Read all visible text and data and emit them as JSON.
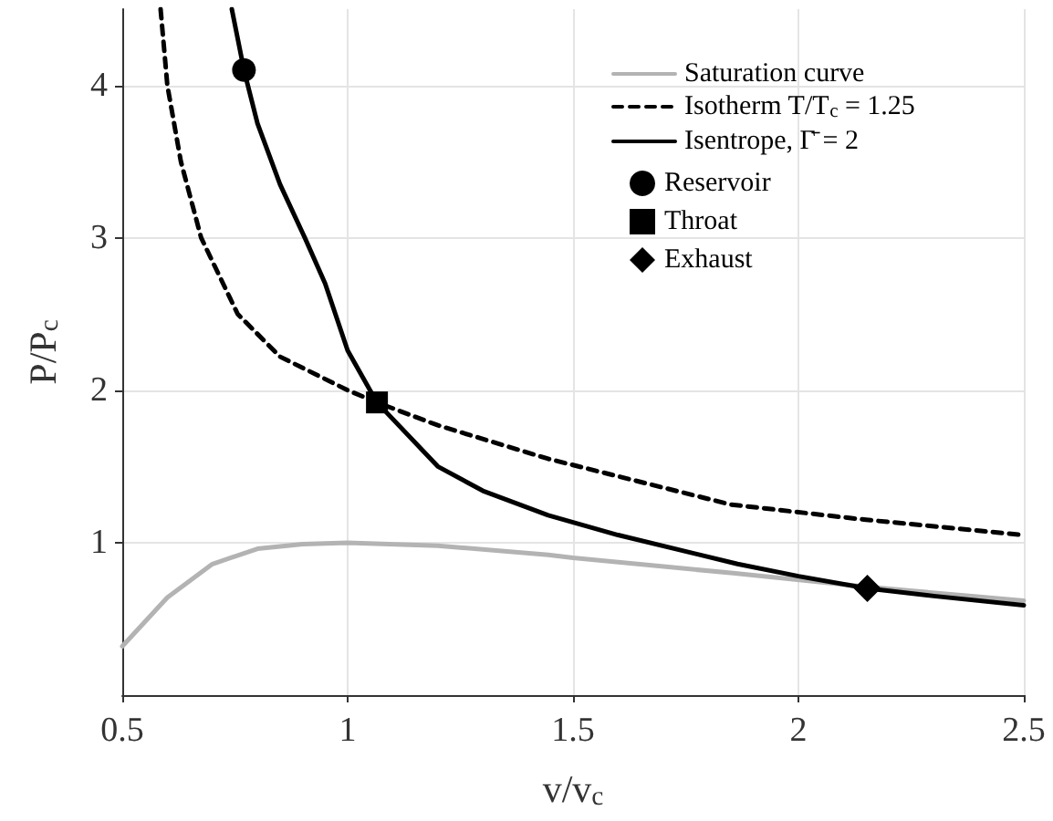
{
  "chart_data": {
    "type": "line",
    "xlabel": "v/v$_{c}$",
    "ylabel": "P/P$_{c}$",
    "xlim": [
      0.5,
      2.5
    ],
    "xticks": [
      0.5,
      1,
      1.5,
      2,
      2.5
    ],
    "ylim": [
      0,
      4.5
    ],
    "yticks": [
      1,
      2,
      3,
      4
    ],
    "grid": true,
    "legend": "top right",
    "series": [
      {
        "name": "Saturation curve",
        "color": "#b3b3b3",
        "line_style": "solid",
        "x": [
          0.5,
          0.6,
          0.7,
          0.8,
          0.9,
          1.0,
          1.2,
          1.445,
          1.5,
          1.855,
          2.15,
          2.5
        ],
        "values": [
          0.32,
          0.64,
          0.86,
          0.96,
          0.99,
          1.0,
          0.98,
          0.92,
          0.9,
          0.8,
          0.71,
          0.62
        ]
      },
      {
        "name": "Isotherm T/T$_{c}$ = 1.25",
        "color": "#000000",
        "line_style": "dashed",
        "x": [
          0.585,
          0.6,
          0.63,
          0.675,
          0.756,
          0.85,
          1.0,
          1.065,
          1.2,
          1.445,
          1.85,
          2.15,
          2.5
        ],
        "values": [
          4.5,
          4.0,
          3.5,
          3.0,
          2.5,
          2.22,
          2.0,
          1.92,
          1.77,
          1.55,
          1.25,
          1.15,
          1.05
        ]
      },
      {
        "name": "Isentrope, Γ̄ = 2",
        "color": "#000000",
        "line_style": "solid",
        "x": [
          0.743,
          0.77,
          0.8,
          0.85,
          0.905,
          0.95,
          1.0,
          1.065,
          1.2,
          1.3,
          1.445,
          1.6,
          1.865,
          2.0,
          2.153,
          2.3,
          2.5
        ],
        "values": [
          4.5,
          4.1,
          3.75,
          3.35,
          3.0,
          2.7,
          2.26,
          1.92,
          1.5,
          1.34,
          1.18,
          1.05,
          0.86,
          0.78,
          0.7,
          0.65,
          0.59
        ]
      },
      {
        "name": "Reservoir",
        "type": "scatter",
        "color": "#000000",
        "marker": "circle",
        "x": [
          0.77
        ],
        "values": [
          4.1
        ]
      },
      {
        "name": "Throat",
        "type": "scatter",
        "color": "#000000",
        "marker": "square",
        "x": [
          1.065
        ],
        "values": [
          1.92
        ]
      },
      {
        "name": "Exhaust",
        "type": "scatter",
        "color": "#000000",
        "marker": "diamond",
        "x": [
          2.153
        ],
        "values": [
          0.7
        ]
      }
    ]
  }
}
